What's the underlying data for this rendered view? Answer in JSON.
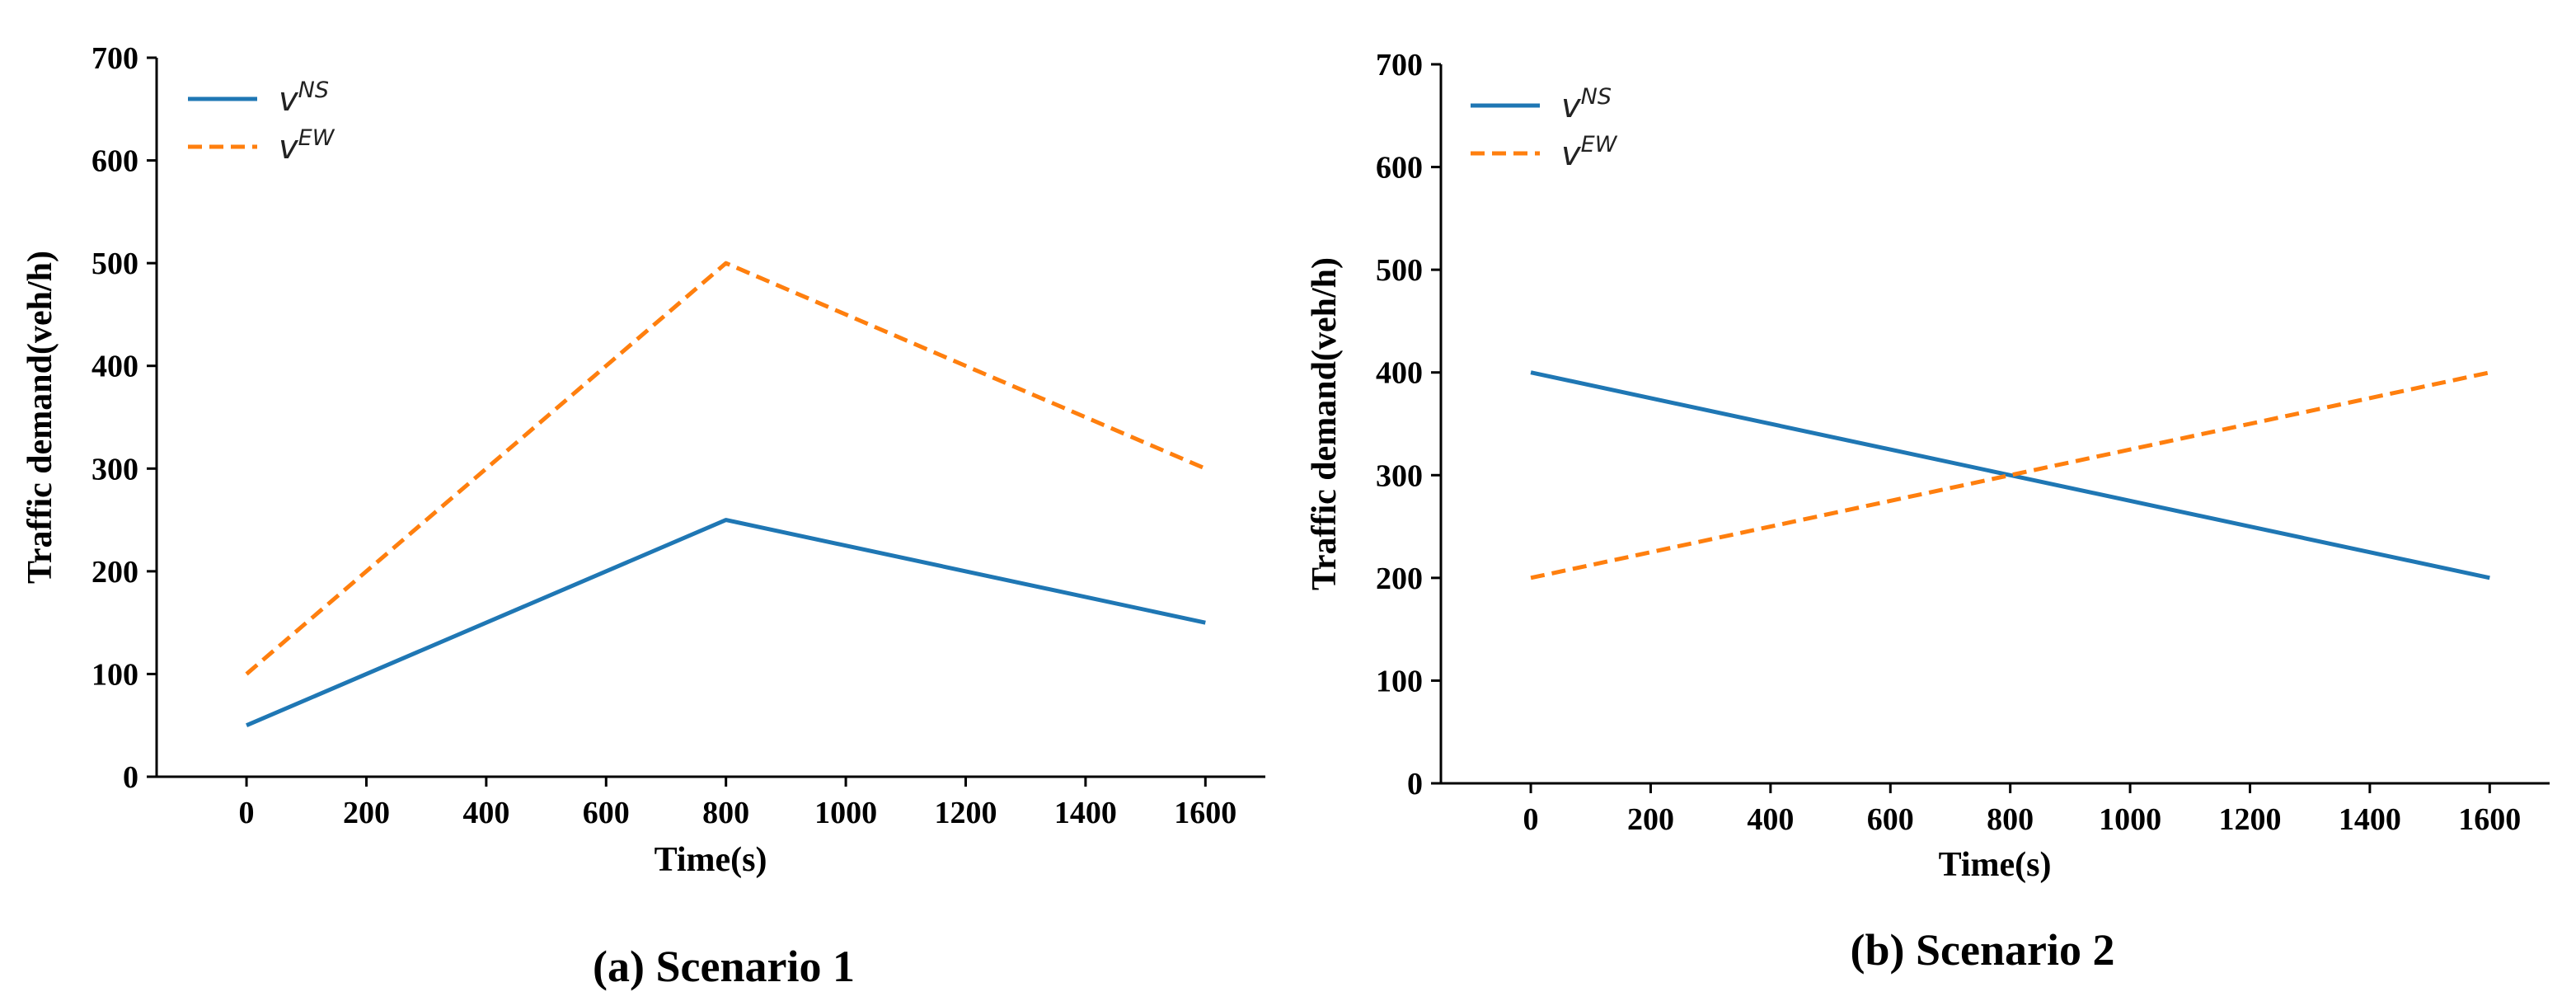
{
  "chart_data": [
    {
      "type": "line",
      "caption": "(a) Scenario 1",
      "xlabel": "Time(s)",
      "ylabel": "Traffic demand(veh/h)",
      "x": [
        0,
        800,
        1600
      ],
      "xlim": [
        -150,
        1700
      ],
      "ylim": [
        0,
        700
      ],
      "xticks": [
        "0",
        "200",
        "400",
        "600",
        "800",
        "1000",
        "1200",
        "1400",
        "1600"
      ],
      "yticks": [
        "0",
        "100",
        "200",
        "300",
        "400",
        "500",
        "600",
        "700"
      ],
      "grid": false,
      "legend_position": "top-left",
      "series": [
        {
          "name": "v",
          "sup": "NS",
          "values": [
            50,
            250,
            150
          ],
          "color": "#1f77b4",
          "style": "solid"
        },
        {
          "name": "v",
          "sup": "EW",
          "values": [
            100,
            500,
            300
          ],
          "color": "#ff7f0e",
          "style": "dashed"
        }
      ]
    },
    {
      "type": "line",
      "caption": "(b) Scenario 2",
      "xlabel": "Time(s)",
      "ylabel": "Traffic demand(veh/h)",
      "x": [
        0,
        800,
        1600
      ],
      "xlim": [
        -150,
        1700
      ],
      "ylim": [
        0,
        700
      ],
      "xticks": [
        "0",
        "200",
        "400",
        "600",
        "800",
        "1000",
        "1200",
        "1400",
        "1600"
      ],
      "yticks": [
        "0",
        "100",
        "200",
        "300",
        "400",
        "500",
        "600",
        "700"
      ],
      "grid": false,
      "legend_position": "top-left",
      "series": [
        {
          "name": "v",
          "sup": "NS",
          "values": [
            400,
            300,
            200
          ],
          "color": "#1f77b4",
          "style": "solid"
        },
        {
          "name": "v",
          "sup": "EW",
          "values": [
            200,
            300,
            400
          ],
          "color": "#ff7f0e",
          "style": "dashed"
        }
      ]
    }
  ]
}
